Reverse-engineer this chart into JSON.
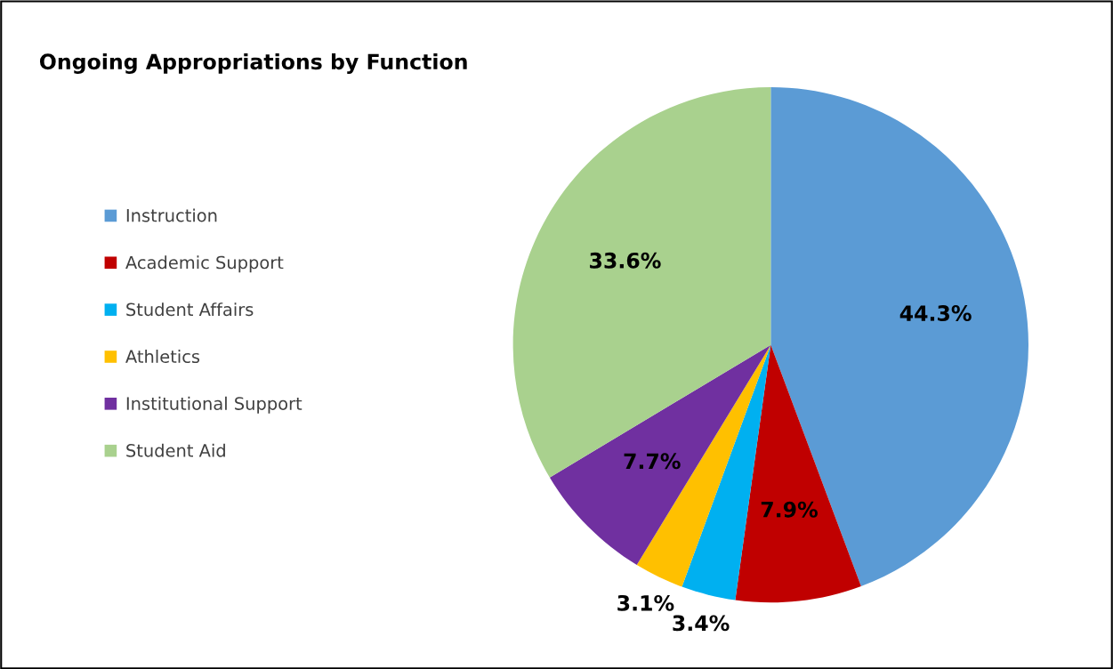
{
  "chart_data": {
    "type": "pie",
    "title": "Ongoing Appropriations by Function",
    "categories": [
      "Instruction",
      "Academic Support",
      "Student Affairs",
      "Athletics",
      "Institutional Support",
      "Student Aid"
    ],
    "values": [
      44.3,
      7.9,
      3.4,
      3.1,
      7.7,
      33.6
    ],
    "colors": [
      "#5b9bd5",
      "#c00000",
      "#00b0f0",
      "#ffc000",
      "#7030a0",
      "#a9d18e"
    ],
    "value_labels": [
      "44.3%",
      "7.9%",
      "3.4%",
      "3.1%",
      "7.7%",
      "33.6%"
    ],
    "legend": "left"
  }
}
